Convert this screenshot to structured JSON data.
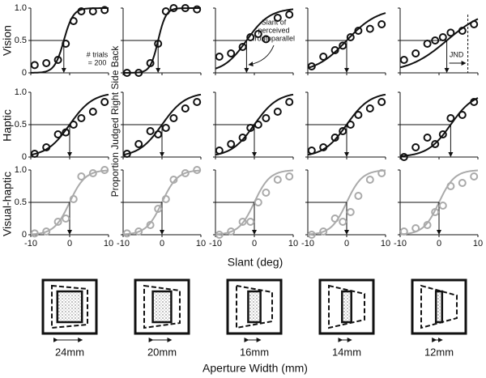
{
  "labels": {
    "rows": [
      "Vision",
      "Haptic",
      "Visual-haptic"
    ],
    "ylabel": "Proportion Judged Right Side Back",
    "xlabel": "Slant (deg)"
  },
  "chart_data": [
    {
      "type": "scatter",
      "color": "#111",
      "x": [
        -9,
        -6,
        -3,
        -1,
        1,
        3,
        6,
        9
      ],
      "values": [
        0.12,
        0.15,
        0.2,
        0.45,
        0.8,
        0.95,
        0.95,
        0.97
      ],
      "pse": -1.5,
      "slope": 1.2,
      "xlim": [
        -10,
        10
      ],
      "ylim": [
        0,
        1
      ],
      "xticks": [
        -10,
        0,
        10
      ],
      "yticks": [
        0,
        0.5,
        {
          "value": 1,
          "label": "1.0"
        }
      ],
      "annotation": [
        "# trials",
        "= 200"
      ]
    },
    {
      "type": "scatter",
      "color": "#111",
      "x": [
        -9,
        -6,
        -3,
        -1,
        1,
        3,
        6,
        9
      ],
      "values": [
        0,
        0,
        0.15,
        0.45,
        0.95,
        1,
        1,
        0.98
      ],
      "pse": -1,
      "slope": 1,
      "xlim": [
        -10,
        10
      ],
      "ylim": [
        0,
        1
      ],
      "xticks": [
        -10,
        0,
        10
      ],
      "yticks": [
        0,
        0.5,
        {
          "value": 1,
          "label": "1.0"
        }
      ]
    },
    {
      "type": "scatter",
      "color": "#111",
      "x": [
        -9,
        -6,
        -3,
        -1,
        1,
        3,
        6,
        9
      ],
      "values": [
        0.25,
        0.3,
        0.4,
        0.55,
        0.6,
        0.52,
        0.85,
        0.9
      ],
      "pse": -2,
      "slope": 3,
      "xlim": [
        -10,
        10
      ],
      "ylim": [
        0,
        1
      ],
      "xticks": [
        -10,
        0,
        10
      ],
      "yticks": [
        0,
        0.5,
        {
          "value": 1,
          "label": "1.0"
        }
      ],
      "annotation": [
        "Slant of",
        "perceived",
        "frontoparallel"
      ]
    },
    {
      "type": "scatter",
      "color": "#111",
      "x": [
        -9,
        -6,
        -3,
        -1,
        1,
        3,
        6,
        9
      ],
      "values": [
        0.1,
        0.25,
        0.35,
        0.42,
        0.55,
        0.65,
        0.68,
        0.75
      ],
      "pse": 0,
      "slope": 4,
      "xlim": [
        -10,
        10
      ],
      "ylim": [
        0,
        1
      ],
      "xticks": [
        -10,
        0,
        10
      ],
      "yticks": [
        0,
        0.5,
        {
          "value": 1,
          "label": "1.0"
        }
      ]
    },
    {
      "type": "scatter",
      "color": "#111",
      "x": [
        -9,
        -6,
        -3,
        -1,
        1,
        3,
        6,
        9
      ],
      "values": [
        0.2,
        0.3,
        0.45,
        0.5,
        0.55,
        0.62,
        0.65,
        0.75
      ],
      "pse": 2,
      "slope": 5,
      "xlim": [
        -10,
        10
      ],
      "ylim": [
        0,
        1
      ],
      "xticks": [
        -10,
        0,
        10
      ],
      "yticks": [
        0,
        0.5,
        {
          "value": 1,
          "label": "1.0"
        }
      ],
      "annotation": [
        "JND"
      ]
    },
    {
      "type": "scatter",
      "color": "#111",
      "x": [
        -9,
        -6,
        -3,
        -1,
        1,
        3,
        6,
        9
      ],
      "values": [
        0.05,
        0.15,
        0.35,
        0.38,
        0.5,
        0.6,
        0.7,
        0.85
      ],
      "pse": 0,
      "slope": 3,
      "xlim": [
        -10,
        10
      ],
      "ylim": [
        0,
        1
      ],
      "xticks": [
        -10,
        0,
        10
      ],
      "yticks": [
        0,
        0.5,
        {
          "value": 1,
          "label": "1.0"
        }
      ]
    },
    {
      "type": "scatter",
      "color": "#111",
      "x": [
        -9,
        -6,
        -3,
        -1,
        1,
        3,
        6,
        9
      ],
      "values": [
        0.05,
        0.2,
        0.4,
        0.35,
        0.45,
        0.6,
        0.75,
        0.85
      ],
      "pse": 0,
      "slope": 3,
      "xlim": [
        -10,
        10
      ],
      "ylim": [
        0,
        1
      ],
      "xticks": [
        -10,
        0,
        10
      ],
      "yticks": [
        0,
        0.5,
        {
          "value": 1,
          "label": "1.0"
        }
      ]
    },
    {
      "type": "scatter",
      "color": "#111",
      "x": [
        -9,
        -6,
        -3,
        -1,
        1,
        3,
        6,
        9
      ],
      "values": [
        0.1,
        0.2,
        0.3,
        0.45,
        0.5,
        0.6,
        0.7,
        0.85
      ],
      "pse": 0,
      "slope": 3,
      "xlim": [
        -10,
        10
      ],
      "ylim": [
        0,
        1
      ],
      "xticks": [
        -10,
        0,
        10
      ],
      "yticks": [
        0,
        0.5,
        {
          "value": 1,
          "label": "1.0"
        }
      ]
    },
    {
      "type": "scatter",
      "color": "#111",
      "x": [
        -9,
        -6,
        -3,
        -1,
        1,
        3,
        6,
        9
      ],
      "values": [
        0.1,
        0.15,
        0.3,
        0.4,
        0.5,
        0.65,
        0.75,
        0.85
      ],
      "pse": 0,
      "slope": 3,
      "xlim": [
        -10,
        10
      ],
      "ylim": [
        0,
        1
      ],
      "xticks": [
        -10,
        0,
        10
      ],
      "yticks": [
        0,
        0.5,
        {
          "value": 1,
          "label": "1.0"
        }
      ]
    },
    {
      "type": "scatter",
      "color": "#111",
      "x": [
        -9,
        -6,
        -3,
        -1,
        1,
        3,
        6,
        9
      ],
      "values": [
        0,
        0.15,
        0.3,
        0.2,
        0.35,
        0.6,
        0.65,
        0.85
      ],
      "pse": 3,
      "slope": 3,
      "xlim": [
        -10,
        10
      ],
      "ylim": [
        0,
        1
      ],
      "xticks": [
        -10,
        0,
        10
      ],
      "yticks": [
        0,
        0.5,
        {
          "value": 1,
          "label": "1.0"
        }
      ]
    },
    {
      "type": "scatter",
      "color": "#aaa",
      "x": [
        -9,
        -6,
        -3,
        -1,
        1,
        3,
        6,
        9
      ],
      "values": [
        0.02,
        0.05,
        0.2,
        0.25,
        0.55,
        0.9,
        0.95,
        1
      ],
      "pse": 0,
      "slope": 2,
      "xlim": [
        -10,
        10
      ],
      "ylim": [
        0,
        1
      ],
      "xticks": [
        -10,
        0,
        10
      ],
      "yticks": [
        0,
        0.5,
        {
          "value": 1,
          "label": "1.0"
        }
      ]
    },
    {
      "type": "scatter",
      "color": "#aaa",
      "x": [
        -9,
        -6,
        -3,
        -1,
        1,
        3,
        6,
        9
      ],
      "values": [
        0.02,
        0.05,
        0.15,
        0.4,
        0.55,
        0.85,
        0.95,
        1
      ],
      "pse": 0,
      "slope": 2,
      "xlim": [
        -10,
        10
      ],
      "ylim": [
        0,
        1
      ],
      "xticks": [
        -10,
        0,
        10
      ],
      "yticks": [
        0,
        0.5,
        {
          "value": 1,
          "label": "1.0"
        }
      ]
    },
    {
      "type": "scatter",
      "color": "#aaa",
      "x": [
        -9,
        -6,
        -3,
        -1,
        1,
        3,
        6,
        9
      ],
      "values": [
        0,
        0.05,
        0.2,
        0.2,
        0.5,
        0.65,
        0.85,
        0.9
      ],
      "pse": 0,
      "slope": 2,
      "xlim": [
        -10,
        10
      ],
      "ylim": [
        0,
        1
      ],
      "xticks": [
        -10,
        0,
        10
      ],
      "yticks": [
        0,
        0.5,
        {
          "value": 1,
          "label": "1.0"
        }
      ]
    },
    {
      "type": "scatter",
      "color": "#aaa",
      "x": [
        -9,
        -6,
        -3,
        -1,
        1,
        3,
        6,
        9
      ],
      "values": [
        0,
        0.05,
        0.25,
        0.2,
        0.35,
        0.6,
        0.85,
        0.95
      ],
      "pse": 0,
      "slope": 2,
      "xlim": [
        -10,
        10
      ],
      "ylim": [
        0,
        1
      ],
      "xticks": [
        -10,
        0,
        10
      ],
      "yticks": [
        0,
        0.5,
        {
          "value": 1,
          "label": "1.0"
        }
      ]
    },
    {
      "type": "scatter",
      "color": "#aaa",
      "x": [
        -9,
        -6,
        -3,
        -1,
        1,
        3,
        6,
        9
      ],
      "values": [
        0.05,
        0.1,
        0.15,
        0.35,
        0.45,
        0.75,
        0.8,
        0.9
      ],
      "pse": 0,
      "slope": 2,
      "xlim": [
        -10,
        10
      ],
      "ylim": [
        0,
        1
      ],
      "xticks": [
        -10,
        0,
        10
      ],
      "yticks": [
        0,
        0.5,
        {
          "value": 1,
          "label": "1.0"
        }
      ]
    }
  ],
  "aperture": {
    "title": "Aperture Width (mm)",
    "values": [
      24,
      20,
      16,
      14,
      12
    ],
    "value_labels": [
      "24mm",
      "20mm",
      "16mm",
      "14mm",
      "12mm"
    ]
  }
}
